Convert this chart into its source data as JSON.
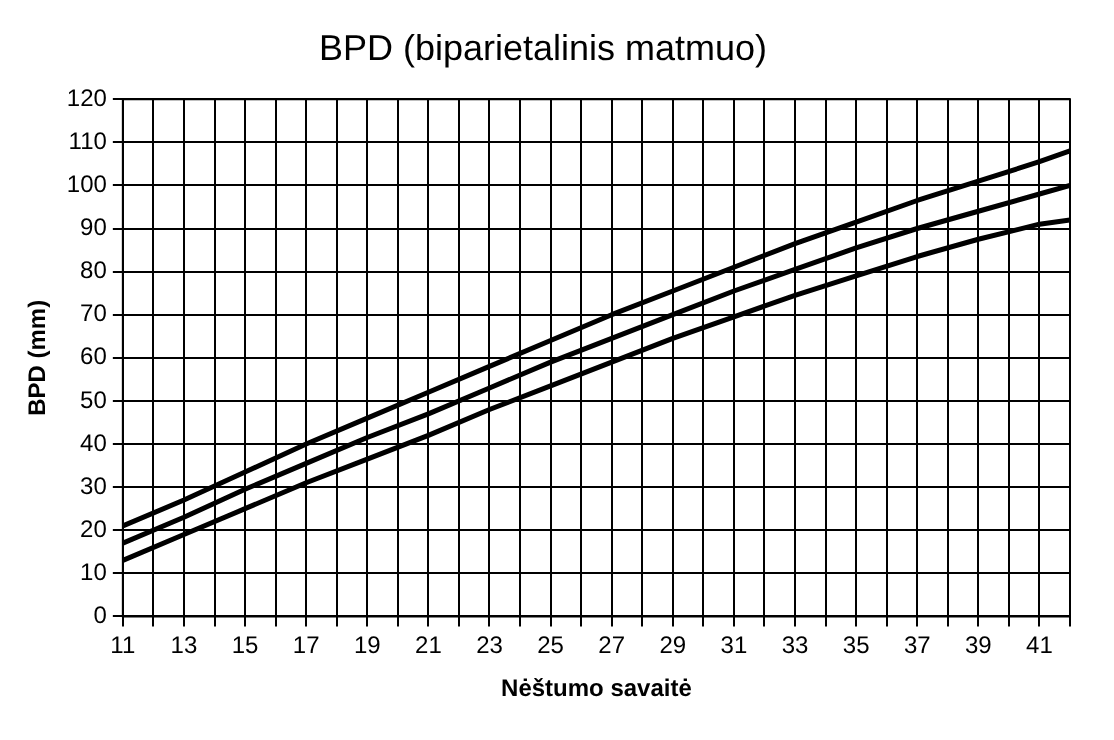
{
  "chart_data": {
    "type": "line",
    "title": "BPD (biparietalinis matmuo)",
    "xlabel": "Nėštumo savaitė",
    "ylabel": "BPD (mm)",
    "x": [
      11,
      13,
      15,
      17,
      19,
      21,
      23,
      25,
      27,
      29,
      31,
      33,
      35,
      37,
      39,
      41,
      42
    ],
    "series": [
      {
        "color": "#000000",
        "values": [
          21,
          27,
          33.5,
          40,
          46,
          52,
          58,
          64,
          70,
          75.5,
          81,
          86.5,
          91.5,
          96.5,
          101,
          105.5,
          108
        ]
      },
      {
        "color": "#000000",
        "values": [
          17,
          23,
          29.5,
          35.5,
          41.5,
          47,
          53,
          59,
          64.5,
          70,
          75.5,
          80.5,
          85.5,
          90,
          94,
          98,
          100
        ]
      },
      {
        "color": "#000000",
        "values": [
          13,
          19,
          25,
          31,
          36.5,
          42,
          48,
          53.5,
          59,
          64.5,
          69.5,
          74.5,
          79,
          83.5,
          87.5,
          91,
          92
        ]
      }
    ],
    "xlim": [
      11,
      42
    ],
    "xticks": [
      11,
      {
        "value": 12,
        "label": null
      },
      13,
      {
        "value": 14,
        "label": null
      },
      15,
      {
        "value": 16,
        "label": null
      },
      17,
      {
        "value": 18,
        "label": null
      },
      19,
      {
        "value": 20,
        "label": null
      },
      21,
      {
        "value": 22,
        "label": null
      },
      23,
      {
        "value": 24,
        "label": null
      },
      25,
      {
        "value": 26,
        "label": null
      },
      27,
      {
        "value": 28,
        "label": null
      },
      29,
      {
        "value": 30,
        "label": null
      },
      31,
      {
        "value": 32,
        "label": null
      },
      33,
      {
        "value": 34,
        "label": null
      },
      35,
      {
        "value": 36,
        "label": null
      },
      37,
      {
        "value": 38,
        "label": null
      },
      39,
      {
        "value": 40,
        "label": null
      },
      41,
      {
        "value": 42,
        "label": null
      }
    ],
    "ylim": [
      0,
      120
    ],
    "yticks": [
      0,
      10,
      20,
      30,
      40,
      50,
      60,
      70,
      80,
      90,
      100,
      110,
      120
    ],
    "grid": true,
    "legend": false,
    "marker": "none",
    "line_style": "solid"
  }
}
